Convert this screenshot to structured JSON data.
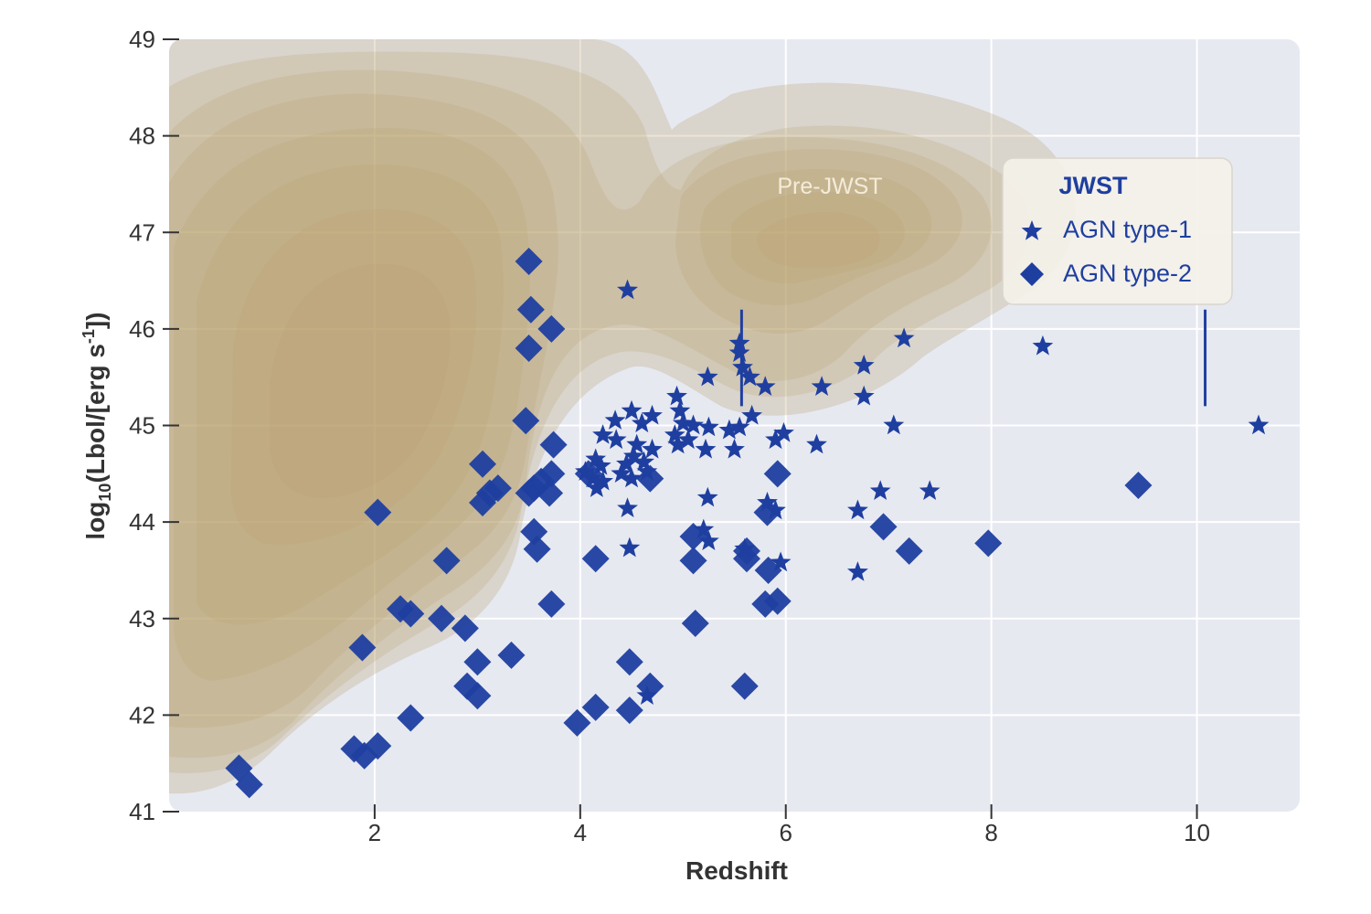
{
  "chart_data": {
    "type": "scatter",
    "xlabel": "Redshift",
    "ylabel_parts": {
      "prefix": "log",
      "sub": "10",
      "middle": "(Lbol/[erg s",
      "sup": "-1",
      "suffix": "])"
    },
    "xlim": [
      0,
      11
    ],
    "ylim": [
      41,
      49
    ],
    "xticks": [
      2,
      4,
      6,
      8,
      10
    ],
    "yticks": [
      41,
      42,
      43,
      44,
      45,
      46,
      47,
      48,
      49
    ],
    "grid": true,
    "background_color": "#e7e9f1",
    "marker_color": "#1f3fa0",
    "density_color": "#b89e6a",
    "region_label": "Pre-JWST",
    "legend": {
      "title": "JWST",
      "placement": "top-right",
      "entries": [
        {
          "label": "AGN type-1",
          "marker": "star"
        },
        {
          "label": "AGN type-2",
          "marker": "diamond"
        }
      ]
    },
    "series": [
      {
        "name": "AGN type-1",
        "marker": "star",
        "points": [
          [
            4.46,
            46.4
          ],
          [
            5.55,
            45.85
          ],
          [
            5.55,
            45.75
          ],
          [
            5.58,
            45.6
          ],
          [
            5.65,
            45.5
          ],
          [
            5.24,
            45.5
          ],
          [
            5.8,
            45.4
          ],
          [
            6.35,
            45.4
          ],
          [
            6.76,
            45.62
          ],
          [
            6.76,
            45.3
          ],
          [
            7.15,
            45.9
          ],
          [
            8.5,
            45.82
          ],
          [
            10.6,
            45.0
          ],
          [
            4.94,
            45.3
          ],
          [
            4.97,
            45.15
          ],
          [
            4.5,
            45.15
          ],
          [
            4.7,
            45.1
          ],
          [
            5.67,
            45.1
          ],
          [
            4.34,
            45.05
          ],
          [
            4.6,
            45.02
          ],
          [
            5.0,
            45.02
          ],
          [
            5.1,
            45.0
          ],
          [
            5.25,
            44.98
          ],
          [
            5.45,
            44.95
          ],
          [
            5.55,
            44.98
          ],
          [
            7.05,
            45.0
          ],
          [
            4.22,
            44.9
          ],
          [
            4.35,
            44.85
          ],
          [
            4.55,
            44.8
          ],
          [
            4.7,
            44.75
          ],
          [
            4.92,
            44.9
          ],
          [
            4.95,
            44.8
          ],
          [
            5.05,
            44.85
          ],
          [
            5.22,
            44.75
          ],
          [
            5.5,
            44.75
          ],
          [
            5.9,
            44.85
          ],
          [
            5.98,
            44.92
          ],
          [
            6.3,
            44.8
          ],
          [
            4.15,
            44.65
          ],
          [
            4.2,
            44.58
          ],
          [
            4.45,
            44.6
          ],
          [
            4.52,
            44.68
          ],
          [
            4.62,
            44.62
          ],
          [
            4.05,
            44.52
          ],
          [
            4.12,
            44.45
          ],
          [
            4.22,
            44.42
          ],
          [
            4.4,
            44.5
          ],
          [
            4.5,
            44.45
          ],
          [
            4.65,
            44.52
          ],
          [
            4.16,
            44.35
          ],
          [
            5.24,
            44.25
          ],
          [
            6.92,
            44.32
          ],
          [
            7.4,
            44.32
          ],
          [
            4.46,
            44.14
          ],
          [
            5.82,
            44.2
          ],
          [
            5.9,
            44.12
          ],
          [
            6.7,
            44.12
          ],
          [
            5.2,
            43.92
          ],
          [
            5.25,
            43.8
          ],
          [
            4.48,
            43.73
          ],
          [
            5.6,
            43.72
          ],
          [
            5.95,
            43.58
          ],
          [
            6.7,
            43.48
          ],
          [
            4.65,
            42.2
          ]
        ]
      },
      {
        "name": "AGN type-2",
        "marker": "diamond",
        "points": [
          [
            3.5,
            46.7
          ],
          [
            3.52,
            46.2
          ],
          [
            3.72,
            46.0
          ],
          [
            3.5,
            45.8
          ],
          [
            3.47,
            45.05
          ],
          [
            3.74,
            44.8
          ],
          [
            3.05,
            44.6
          ],
          [
            3.72,
            44.5
          ],
          [
            3.55,
            44.35
          ],
          [
            3.5,
            44.3
          ],
          [
            3.7,
            44.3
          ],
          [
            3.62,
            44.42
          ],
          [
            3.2,
            44.35
          ],
          [
            3.05,
            44.2
          ],
          [
            3.12,
            44.3
          ],
          [
            2.03,
            44.1
          ],
          [
            3.55,
            43.9
          ],
          [
            3.58,
            43.72
          ],
          [
            2.7,
            43.6
          ],
          [
            3.72,
            43.15
          ],
          [
            2.25,
            43.1
          ],
          [
            2.35,
            43.05
          ],
          [
            2.65,
            43.0
          ],
          [
            2.88,
            42.9
          ],
          [
            1.88,
            42.7
          ],
          [
            3.33,
            42.62
          ],
          [
            3.0,
            42.55
          ],
          [
            2.9,
            42.3
          ],
          [
            3.0,
            42.2
          ],
          [
            2.35,
            41.97
          ],
          [
            1.8,
            41.65
          ],
          [
            1.9,
            41.58
          ],
          [
            2.03,
            41.68
          ],
          [
            0.68,
            41.45
          ],
          [
            0.78,
            41.28
          ],
          [
            4.15,
            43.62
          ],
          [
            4.08,
            44.5
          ],
          [
            4.68,
            44.45
          ],
          [
            5.1,
            43.85
          ],
          [
            5.1,
            43.6
          ],
          [
            5.62,
            43.7
          ],
          [
            5.62,
            43.62
          ],
          [
            5.83,
            43.5
          ],
          [
            5.8,
            43.15
          ],
          [
            5.92,
            43.18
          ],
          [
            5.92,
            44.5
          ],
          [
            5.82,
            44.1
          ],
          [
            5.12,
            42.95
          ],
          [
            4.48,
            42.55
          ],
          [
            4.68,
            42.3
          ],
          [
            4.48,
            42.05
          ],
          [
            4.15,
            42.08
          ],
          [
            3.97,
            41.92
          ],
          [
            5.6,
            42.3
          ],
          [
            6.95,
            43.95
          ],
          [
            7.2,
            43.7
          ],
          [
            7.97,
            43.78
          ],
          [
            9.43,
            44.38
          ]
        ]
      }
    ],
    "error_bars": [
      {
        "x": 5.57,
        "y": 45.8,
        "ylow": 45.2,
        "yhigh": 46.2
      },
      {
        "x": 10.08,
        "y": 45.7,
        "ylow": 45.2,
        "yhigh": 46.2
      }
    ]
  }
}
